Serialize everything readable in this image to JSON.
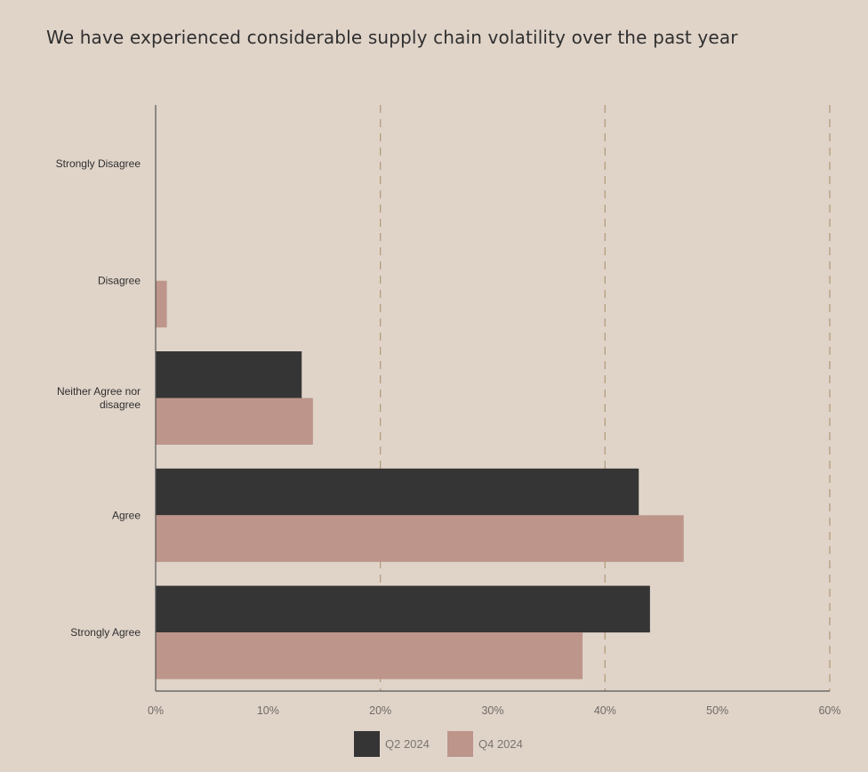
{
  "title": "We have experienced considerable supply chain volatility over the past year",
  "colors": {
    "background": "#e0d4c9",
    "q2": "#353535",
    "q4": "#bd958a",
    "grid": "#b39d7c",
    "axis": "#555555"
  },
  "chart_data": {
    "type": "bar",
    "orientation": "horizontal",
    "title": "We have experienced considerable supply chain volatility over the past year",
    "categories": [
      "Strongly Disagree",
      "Disagree",
      "Neither Agree nor disagree",
      "Agree",
      "Strongly Agree"
    ],
    "category_lines": [
      [
        "Strongly Disagree"
      ],
      [
        "Disagree"
      ],
      [
        "Neither Agree nor",
        "disagree"
      ],
      [
        "Agree"
      ],
      [
        "Strongly Agree"
      ]
    ],
    "series": [
      {
        "name": "Q2 2024",
        "values": [
          0,
          0,
          13,
          43,
          44
        ]
      },
      {
        "name": "Q4 2024",
        "values": [
          0,
          1,
          14,
          47,
          38
        ]
      }
    ],
    "xlim": [
      0,
      60
    ],
    "xticks": [
      0,
      10,
      20,
      30,
      40,
      50,
      60
    ],
    "xtick_labels": [
      "0%",
      "10%",
      "20%",
      "30%",
      "40%",
      "50%",
      "60%"
    ],
    "grid": "dashed vertical at 20%, 40%, 60%",
    "legend": "bottom-center",
    "xlabel": "",
    "ylabel": ""
  }
}
